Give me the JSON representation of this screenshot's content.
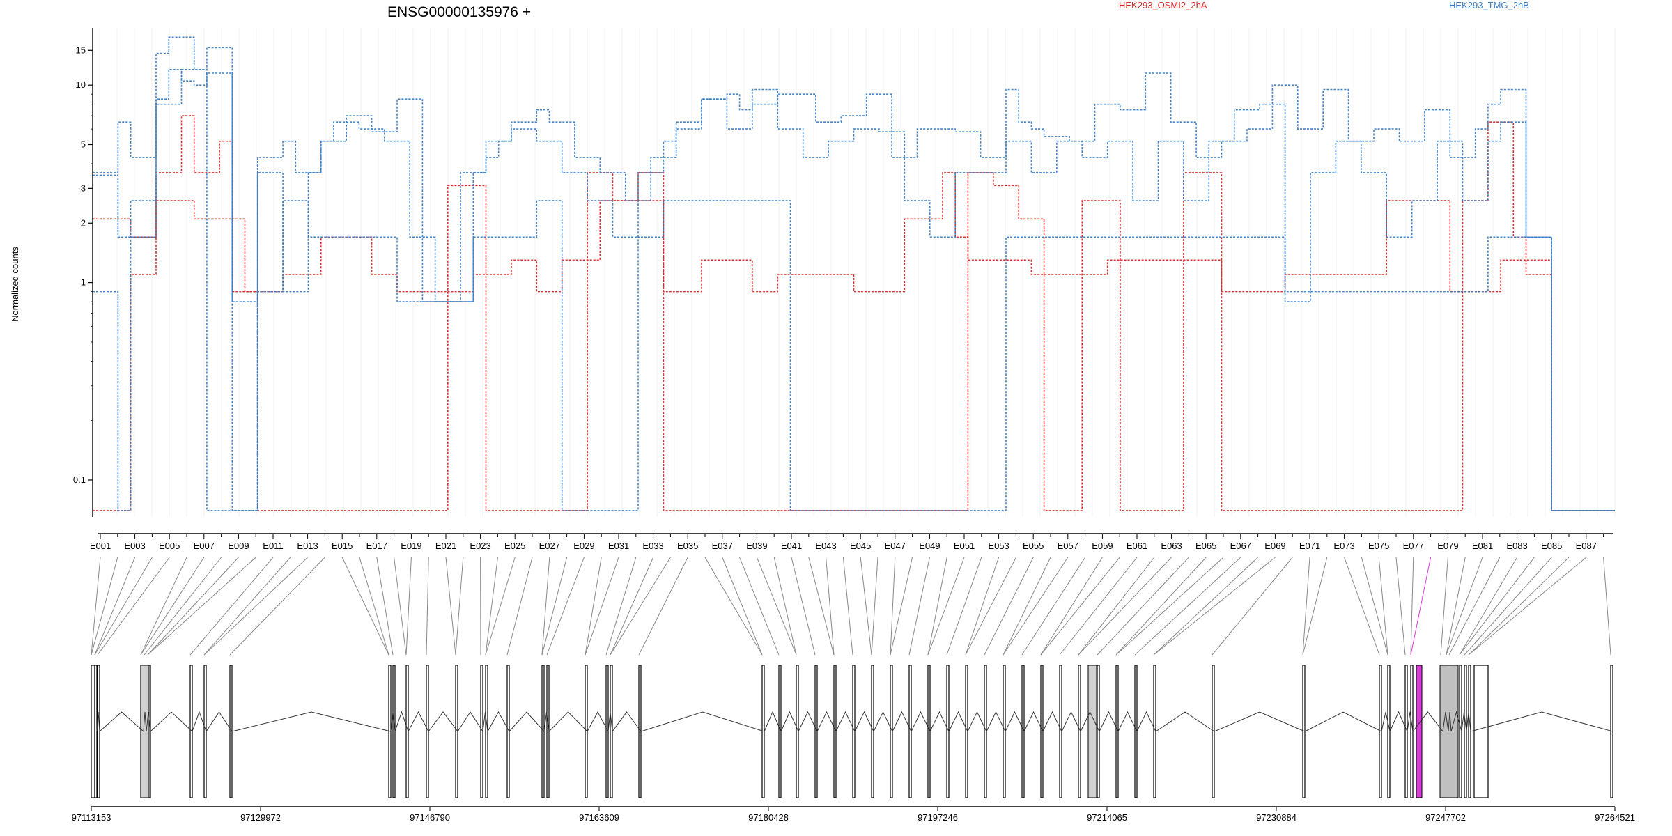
{
  "chart_data": {
    "type": "line",
    "title": "ENSG00000135976 +",
    "ylabel": "Normalized counts",
    "y_scale": "log",
    "y_ticks": [
      "0.1",
      "1",
      "2",
      "3",
      "5",
      "10",
      "15"
    ],
    "exon_labels": [
      "E001",
      "E003",
      "E005",
      "E007",
      "E009",
      "E011",
      "E013",
      "E015",
      "E017",
      "E019",
      "E021",
      "E023",
      "E025",
      "E027",
      "E029",
      "E031",
      "E033",
      "E035",
      "E037",
      "E039",
      "E041",
      "E043",
      "E045",
      "E047",
      "E049",
      "E051",
      "E053",
      "E055",
      "E057",
      "E059",
      "E061",
      "E063",
      "E065",
      "E067",
      "E069",
      "E071",
      "E073",
      "E075",
      "E077",
      "E079",
      "E081",
      "E083",
      "E085",
      "E087"
    ],
    "genomic_coordinates": [
      "97113153",
      "97129972",
      "97146790",
      "97163609",
      "97180428",
      "97197246",
      "97214065",
      "97230884",
      "97247702",
      "97264521"
    ],
    "legend": [
      {
        "name": "HEK293_OSMI2_2hA",
        "color": "#d62728"
      },
      {
        "name": "HEK293_TMG_2hB",
        "color": "#3a7dc4"
      }
    ],
    "highlighted_exon_color": "#d83ad8",
    "series": [
      {
        "name": "HEK293_OSMI2_2hA",
        "color": "#d62728",
        "values": [
          2.1,
          2.1,
          2.1,
          1.7,
          1.7,
          2.6,
          2.6,
          2.6,
          2.1,
          2.1,
          2.1,
          2.1,
          0.9,
          0.9,
          0.9,
          1.1,
          1.1,
          1.1,
          1.7,
          1.7,
          1.7,
          1.7,
          1.1,
          1.1,
          0.9,
          0.9,
          0.9,
          0.9,
          0.9,
          0.9,
          1.1,
          1.1,
          1.1,
          1.3,
          1.3,
          0.9,
          0.9,
          1.3,
          1.3,
          1.3,
          2.6,
          2.6,
          2.6,
          2.6,
          2.6,
          0.9,
          0.9,
          0.9,
          1.3,
          1.3,
          1.3,
          1.3,
          0.9,
          0.9,
          1.1,
          1.1,
          1.1,
          1.1,
          1.1,
          1.1,
          0.9,
          0.9,
          0.9,
          0.9,
          2.1,
          2.1,
          2.1,
          3.6,
          1.7,
          1.3,
          1.3,
          1.3,
          1.3,
          1.3,
          1.1,
          1.1,
          1.1,
          1.1,
          1.1,
          1.1,
          1.3,
          1.3,
          1.3,
          1.3,
          1.3,
          1.3,
          1.3,
          1.3,
          1.3,
          0.9,
          0.9,
          0.9,
          0.9,
          0.9,
          1.1,
          1.1,
          1.1,
          1.1,
          1.1,
          1.1,
          1.1,
          1.1,
          2.6,
          2.6,
          2.6,
          2.6,
          2.6,
          0.9,
          0.9,
          0.9,
          0.9,
          1.3,
          1.3,
          1.3,
          1.3,
          0.07,
          0.07,
          0.07,
          0.07,
          0.07
        ]
      },
      {
        "name": "HEK293_OSMI2_2hA",
        "color": "#d62728",
        "values": [
          0.07,
          0.07,
          0.07,
          1.1,
          1.1,
          3.6,
          3.6,
          7.0,
          3.6,
          3.6,
          5.2,
          0.9,
          0.9,
          0.07,
          0.07,
          0.07,
          0.07,
          0.07,
          0.07,
          0.07,
          0.07,
          0.07,
          0.07,
          0.07,
          0.07,
          0.07,
          0.07,
          0.07,
          3.1,
          3.1,
          3.1,
          0.07,
          0.07,
          0.07,
          0.07,
          0.07,
          0.07,
          0.07,
          0.07,
          3.6,
          3.6,
          2.6,
          2.6,
          3.6,
          3.6,
          0.07,
          0.07,
          0.07,
          0.07,
          0.07,
          0.07,
          0.07,
          0.07,
          0.07,
          0.07,
          0.07,
          0.07,
          0.07,
          0.07,
          0.07,
          0.07,
          0.07,
          0.07,
          0.07,
          0.07,
          0.07,
          0.07,
          0.07,
          0.07,
          3.6,
          3.6,
          3.1,
          3.1,
          2.1,
          2.1,
          0.07,
          0.07,
          0.07,
          2.6,
          2.6,
          2.6,
          0.07,
          0.07,
          0.07,
          0.07,
          0.07,
          3.6,
          3.6,
          3.6,
          0.07,
          0.07,
          0.07,
          0.07,
          0.07,
          0.07,
          0.07,
          0.07,
          0.07,
          0.07,
          0.07,
          0.07,
          0.07,
          0.07,
          0.07,
          0.07,
          0.07,
          0.07,
          0.07,
          2.6,
          2.6,
          6.5,
          6.5,
          1.7,
          1.1,
          1.1,
          0.07,
          0.07,
          0.07,
          0.07,
          0.07
        ]
      },
      {
        "name": "HEK293_TMG_2hB",
        "color": "#3a7dc4",
        "values": [
          3.6,
          3.6,
          6.5,
          4.3,
          4.3,
          14.5,
          17.5,
          17.5,
          12.0,
          15.5,
          15.5,
          0.8,
          0.8,
          4.3,
          4.3,
          5.2,
          3.6,
          3.6,
          5.2,
          5.2,
          7.0,
          7.0,
          5.8,
          5.8,
          8.5,
          8.5,
          0.8,
          0.8,
          0.8,
          0.8,
          3.6,
          5.2,
          5.2,
          6.5,
          6.5,
          7.5,
          6.5,
          6.5,
          4.3,
          4.3,
          3.6,
          3.6,
          2.6,
          2.6,
          4.3,
          4.3,
          6.0,
          6.0,
          8.5,
          8.5,
          9.0,
          7.5,
          8.0,
          8.0,
          9.0,
          9.0,
          9.0,
          6.5,
          6.5,
          7.0,
          7.0,
          9.0,
          9.0,
          4.3,
          4.3,
          6.0,
          6.0,
          6.0,
          5.8,
          5.8,
          4.3,
          4.3,
          9.5,
          6.5,
          6.0,
          5.5,
          5.5,
          5.2,
          5.2,
          8.0,
          8.0,
          7.5,
          7.5,
          11.5,
          11.5,
          6.5,
          6.5,
          4.3,
          4.3,
          5.2,
          5.2,
          6.0,
          6.0,
          10.0,
          10.0,
          6.0,
          6.0,
          9.5,
          9.5,
          5.2,
          5.2,
          6.0,
          6.0,
          5.2,
          5.2,
          7.5,
          7.5,
          4.3,
          4.3,
          6.0,
          8.0,
          9.5,
          9.5,
          1.7,
          1.7,
          0.07,
          0.07,
          0.07,
          0.07,
          0.07
        ]
      },
      {
        "name": "HEK293_TMG_2hB",
        "color": "#3a7dc4",
        "values": [
          3.5,
          3.5,
          1.7,
          1.7,
          1.7,
          8.5,
          12.0,
          10.5,
          10.0,
          11.5,
          11.5,
          0.07,
          0.07,
          3.6,
          3.6,
          0.9,
          0.9,
          3.6,
          5.2,
          6.5,
          6.5,
          6.0,
          6.0,
          5.2,
          5.2,
          1.7,
          1.7,
          0.8,
          0.8,
          3.6,
          3.6,
          4.3,
          5.2,
          6.0,
          6.0,
          5.2,
          5.2,
          3.6,
          3.6,
          2.6,
          2.6,
          1.7,
          1.7,
          3.6,
          3.6,
          5.2,
          6.5,
          6.5,
          8.5,
          8.5,
          6.0,
          6.0,
          9.5,
          9.5,
          6.0,
          6.0,
          4.3,
          4.3,
          5.2,
          5.2,
          6.0,
          6.0,
          5.8,
          5.8,
          2.6,
          2.6,
          1.7,
          1.7,
          3.6,
          3.6,
          3.6,
          3.6,
          5.2,
          5.2,
          3.6,
          3.6,
          5.2,
          5.2,
          4.3,
          4.3,
          5.2,
          5.2,
          2.6,
          2.6,
          5.2,
          5.2,
          2.6,
          2.6,
          5.2,
          5.2,
          7.5,
          7.5,
          8.0,
          8.0,
          0.8,
          0.8,
          3.6,
          3.6,
          5.2,
          5.2,
          3.6,
          3.6,
          1.7,
          1.7,
          2.6,
          2.6,
          5.2,
          5.2,
          2.6,
          2.6,
          5.2,
          6.5,
          6.5,
          1.7,
          1.7,
          0.07,
          0.07,
          0.07,
          0.07,
          0.07
        ]
      },
      {
        "name": "HEK293_TMG_2hB",
        "color": "#3a7dc4",
        "values": [
          0.9,
          0.9,
          0.07,
          2.6,
          2.6,
          8.0,
          8.0,
          12.0,
          12.0,
          0.07,
          0.07,
          0.07,
          0.07,
          0.9,
          0.9,
          2.6,
          2.6,
          1.7,
          1.7,
          1.7,
          1.7,
          1.7,
          1.7,
          1.7,
          0.8,
          0.8,
          0.8,
          0.8,
          0.8,
          0.8,
          1.7,
          1.7,
          1.7,
          1.7,
          1.7,
          2.6,
          2.6,
          0.07,
          0.07,
          0.07,
          0.07,
          0.07,
          0.07,
          1.7,
          1.7,
          2.6,
          2.6,
          2.6,
          2.6,
          2.6,
          2.6,
          2.6,
          2.6,
          2.6,
          2.6,
          0.07,
          0.07,
          0.07,
          0.07,
          0.07,
          0.07,
          0.07,
          0.07,
          0.07,
          0.07,
          0.07,
          0.07,
          0.07,
          0.07,
          0.07,
          0.07,
          0.07,
          1.7,
          1.7,
          1.7,
          1.7,
          1.7,
          1.7,
          1.7,
          1.7,
          1.7,
          1.7,
          1.7,
          1.7,
          1.7,
          1.7,
          1.7,
          1.7,
          1.7,
          1.7,
          1.7,
          1.7,
          1.7,
          1.7,
          0.9,
          0.9,
          0.9,
          0.9,
          0.9,
          0.9,
          0.9,
          0.9,
          0.9,
          0.9,
          0.9,
          0.9,
          0.9,
          0.9,
          0.9,
          0.9,
          1.7,
          1.7,
          1.7,
          1.7,
          1.7,
          0.07,
          0.07,
          0.07,
          0.07,
          0.07
        ]
      }
    ]
  }
}
